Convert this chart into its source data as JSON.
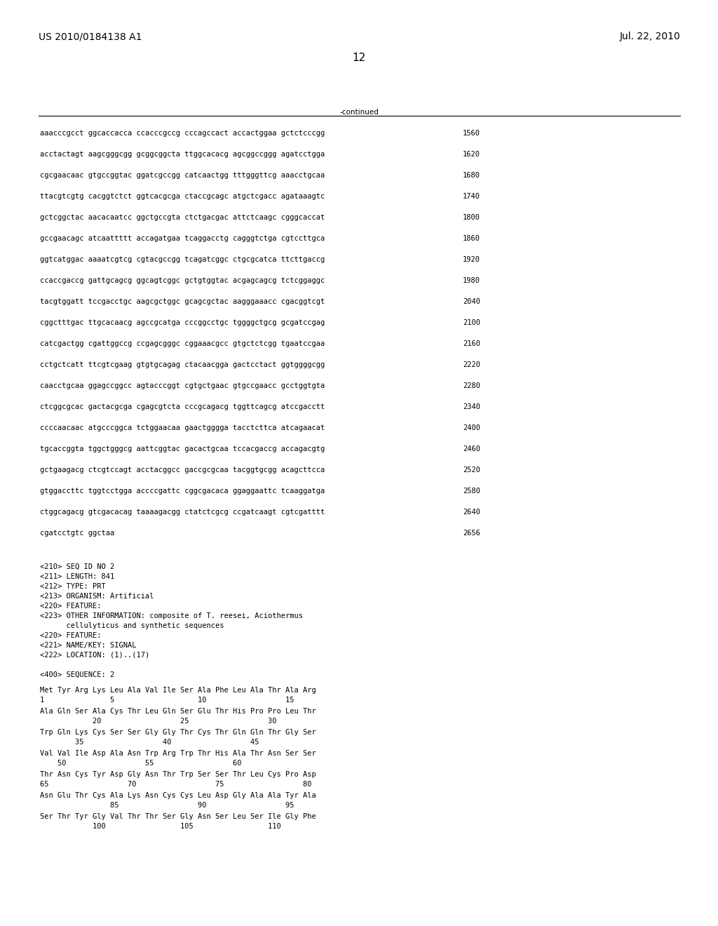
{
  "header_left": "US 2010/0184138 A1",
  "header_right": "Jul. 22, 2010",
  "page_number": "12",
  "continued_label": "-continued",
  "background_color": "#ffffff",
  "text_color": "#000000",
  "font_size_header": 10,
  "font_size_body": 7.5,
  "font_size_page": 11,
  "sequence_lines": [
    [
      "aaacccgcct ggcaccacca ccacccgccg cccagccact accactggaa gctctcccgg",
      "1560"
    ],
    [
      "acctactagt aagcgggcgg gcggcggcta ttggcacacg agcggccggg agatcctgga",
      "1620"
    ],
    [
      "cgcgaacaac gtgccggtac ggatcgccgg catcaactgg tttgggttcg aaacctgcaa",
      "1680"
    ],
    [
      "ttacgtcgtg cacggtctct ggtcacgcga ctaccgcagc atgctcgacc agataaagtc",
      "1740"
    ],
    [
      "gctcggctac aacacaatcc ggctgccgta ctctgacgac attctcaagc cgggcaccat",
      "1800"
    ],
    [
      "gccgaacagc atcaattttt accagatgaa tcaggacctg cagggtctga cgtccttgca",
      "1860"
    ],
    [
      "ggtcatggac aaaatcgtcg cgtacgccgg tcagatcggc ctgcgcatca ttcttgaccg",
      "1920"
    ],
    [
      "ccaccgaccg gattgcagcg ggcagtcggc gctgtggtac acgagcagcg tctcggaggc",
      "1980"
    ],
    [
      "tacgtggatt tccgacctgc aagcgctggc gcagcgctac aagggaaacc cgacggtcgt",
      "2040"
    ],
    [
      "cggctttgac ttgcacaacg agccgcatga cccggcctgc tggggctgcg gcgatccgag",
      "2100"
    ],
    [
      "catcgactgg cgattggccg ccgagcgggc cggaaacgcc gtgctctcgg tgaatccgaa",
      "2160"
    ],
    [
      "cctgctcatt ttcgtcgaag gtgtgcagag ctacaacgga gactcctact ggtggggcgg",
      "2220"
    ],
    [
      "caacctgcaa ggagccggcc agtacccggt cgtgctgaac gtgccgaacc gcctggtgta",
      "2280"
    ],
    [
      "ctcggcgcac gactacgcga cgagcgtcta cccgcagacg tggttcagcg atccgacctt",
      "2340"
    ],
    [
      "ccccaacaac atgcccggca tctggaacaa gaactgggga tacctcttca atcagaacat",
      "2400"
    ],
    [
      "tgcaccggta tggctgggcg aattcggtac gacactgcaa tccacgaccg accagacgtg",
      "2460"
    ],
    [
      "gctgaagacg ctcgtccagt acctacggcc gaccgcgcaa tacggtgcgg acagcttcca",
      "2520"
    ],
    [
      "gtggaccttc tggtcctgga accccgattc cggcgacaca ggaggaattc tcaaggatga",
      "2580"
    ],
    [
      "ctggcagacg gtcgacacag taaaagacgg ctatctcgcg ccgatcaagt cgtcgatttt",
      "2640"
    ],
    [
      "cgatcctgtc ggctaa",
      "2656"
    ]
  ],
  "metadata_lines": [
    "<210> SEQ ID NO 2",
    "<211> LENGTH: 841",
    "<212> TYPE: PRT",
    "<213> ORGANISM: Artificial",
    "<220> FEATURE:",
    "<223> OTHER INFORMATION: composite of T. reesei, Aciothermus",
    "      cellulyticus and synthetic sequences",
    "<220> FEATURE:",
    "<221> NAME/KEY: SIGNAL",
    "<222> LOCATION: (1)..(17)"
  ],
  "sequence_label": "<400> SEQUENCE: 2",
  "amino_acid_lines": [
    {
      "seq": "Met Tyr Arg Lys Leu Ala Val Ile Ser Ala Phe Leu Ala Thr Ala Arg",
      "nums": "1               5                   10                  15"
    },
    {
      "seq": "Ala Gln Ser Ala Cys Thr Leu Gln Ser Glu Thr His Pro Pro Leu Thr",
      "nums": "            20                  25                  30"
    },
    {
      "seq": "Trp Gln Lys Cys Ser Ser Gly Gly Thr Cys Thr Gln Gln Thr Gly Ser",
      "nums": "        35                  40                  45"
    },
    {
      "seq": "Val Val Ile Asp Ala Asn Trp Arg Trp Thr His Ala Thr Asn Ser Ser",
      "nums": "    50                  55                  60"
    },
    {
      "seq": "Thr Asn Cys Tyr Asp Gly Asn Thr Trp Ser Ser Thr Leu Cys Pro Asp",
      "nums": "65                  70                  75                  80"
    },
    {
      "seq": "Asn Glu Thr Cys Ala Lys Asn Cys Cys Leu Asp Gly Ala Ala Tyr Ala",
      "nums": "                85                  90                  95"
    },
    {
      "seq": "Ser Thr Tyr Gly Val Thr Thr Ser Gly Asn Ser Leu Ser Ile Gly Phe",
      "nums": "            100                 105                 110"
    }
  ]
}
